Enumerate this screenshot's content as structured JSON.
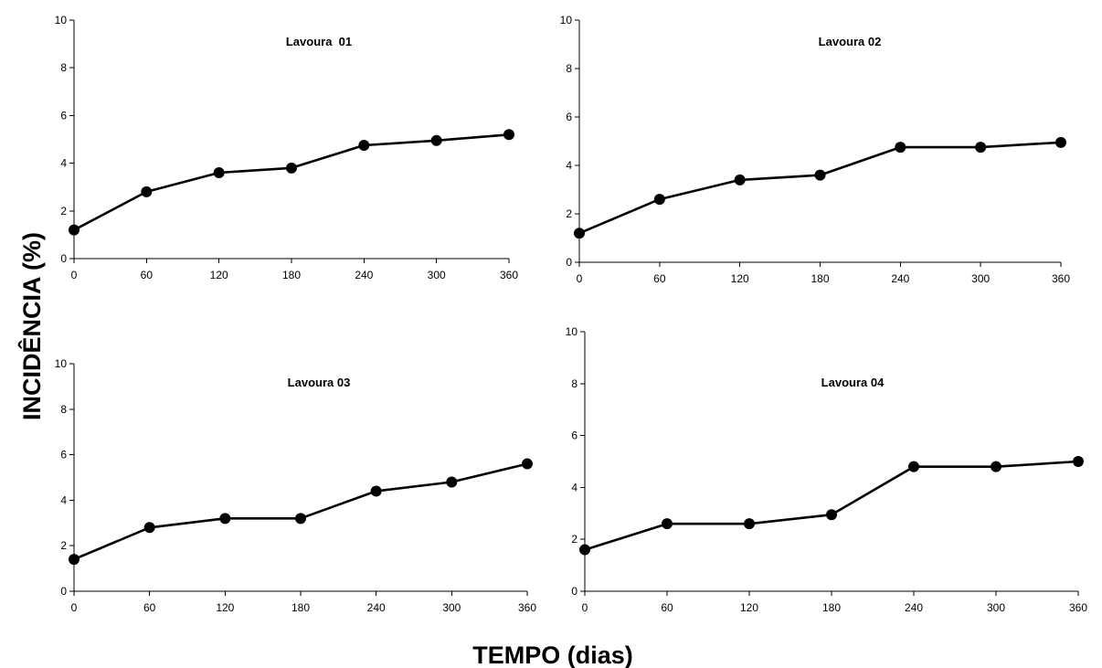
{
  "figure": {
    "xlabel": "TEMPO (dias)",
    "ylabel": "INCIDÊNCIA (%)"
  },
  "chart_data": [
    {
      "type": "line",
      "title": "Lavoura  01",
      "x": [
        0,
        60,
        120,
        180,
        240,
        300,
        360
      ],
      "x_tick_labels": [
        "0",
        "60",
        "120",
        "180",
        "240",
        "300",
        "360"
      ],
      "y_tick_labels": [
        "0",
        "2",
        "4",
        "6",
        "8",
        "10"
      ],
      "series": [
        {
          "values": [
            1.2,
            2.8,
            3.6,
            3.8,
            4.75,
            4.95,
            5.2
          ]
        }
      ],
      "xlim": [
        0,
        360
      ],
      "ylim": [
        0,
        10
      ],
      "grid": false,
      "legend": "none"
    },
    {
      "type": "line",
      "title": "Lavoura 02",
      "x": [
        0,
        60,
        120,
        180,
        240,
        300,
        360
      ],
      "x_tick_labels": [
        "0",
        "60",
        "120",
        "180",
        "240",
        "300",
        "360"
      ],
      "y_tick_labels": [
        "0",
        "2",
        "4",
        "6",
        "8",
        "10"
      ],
      "series": [
        {
          "values": [
            1.2,
            2.6,
            3.4,
            3.6,
            4.75,
            4.75,
            4.95
          ]
        }
      ],
      "xlim": [
        0,
        360
      ],
      "ylim": [
        0,
        10
      ],
      "grid": false,
      "legend": "none"
    },
    {
      "type": "line",
      "title": "Lavoura 03",
      "x": [
        0,
        60,
        120,
        180,
        240,
        300,
        360
      ],
      "x_tick_labels": [
        "0",
        "60",
        "120",
        "180",
        "240",
        "300",
        "360"
      ],
      "y_tick_labels": [
        "0",
        "2",
        "4",
        "6",
        "8",
        "10"
      ],
      "series": [
        {
          "values": [
            1.4,
            2.8,
            3.2,
            3.2,
            4.4,
            4.8,
            5.6
          ]
        }
      ],
      "xlim": [
        0,
        360
      ],
      "ylim": [
        0,
        10
      ],
      "grid": false,
      "legend": "none"
    },
    {
      "type": "line",
      "title": "Lavoura 04",
      "x": [
        0,
        60,
        120,
        180,
        240,
        300,
        360
      ],
      "x_tick_labels": [
        "0",
        "60",
        "120",
        "180",
        "240",
        "300",
        "360"
      ],
      "y_tick_labels": [
        "0",
        "2",
        "4",
        "6",
        "8",
        "10"
      ],
      "series": [
        {
          "values": [
            1.6,
            2.6,
            2.6,
            2.95,
            4.8,
            4.8,
            5.0
          ]
        }
      ],
      "xlim": [
        0,
        360
      ],
      "ylim": [
        0,
        10
      ],
      "grid": false,
      "legend": "none"
    }
  ]
}
